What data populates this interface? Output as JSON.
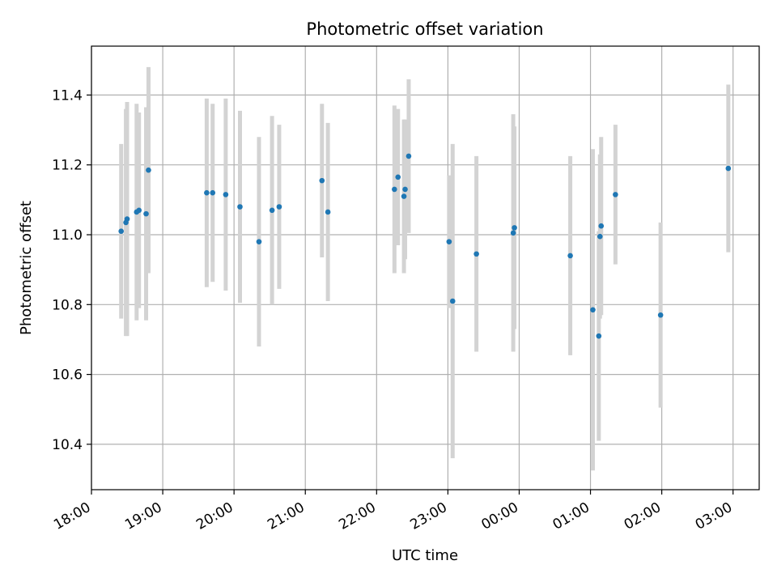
{
  "chart_data": {
    "type": "scatter",
    "title": "Photometric offset variation",
    "xlabel": "UTC time",
    "ylabel": "Photometric offset",
    "xlim": [
      "18:00",
      "03:22"
    ],
    "ylim": [
      10.27,
      11.54
    ],
    "x_ticks": [
      "18:00",
      "19:00",
      "20:00",
      "21:00",
      "22:00",
      "23:00",
      "00:00",
      "01:00",
      "02:00",
      "03:00"
    ],
    "y_ticks": [
      "10.4",
      "10.6",
      "10.8",
      "11.0",
      "11.2",
      "11.4"
    ],
    "grid": true,
    "colors": {
      "marker": "#1f77b4",
      "errorbar": "#d3d3d3",
      "grid": "#b0b0b0"
    },
    "points": [
      {
        "x": "18:25",
        "y": 11.01,
        "err": 0.25
      },
      {
        "x": "18:29",
        "y": 11.035,
        "err": 0.325
      },
      {
        "x": "18:30",
        "y": 11.045,
        "err": 0.335
      },
      {
        "x": "18:38",
        "y": 11.065,
        "err": 0.31
      },
      {
        "x": "18:40",
        "y": 11.07,
        "err": 0.28
      },
      {
        "x": "18:46",
        "y": 11.06,
        "err": 0.305
      },
      {
        "x": "18:48",
        "y": 11.185,
        "err": 0.295
      },
      {
        "x": "19:37",
        "y": 11.12,
        "err": 0.27
      },
      {
        "x": "19:42",
        "y": 11.12,
        "err": 0.255
      },
      {
        "x": "19:53",
        "y": 11.115,
        "err": 0.275
      },
      {
        "x": "20:05",
        "y": 11.08,
        "err": 0.275
      },
      {
        "x": "20:21",
        "y": 10.98,
        "err": 0.3
      },
      {
        "x": "20:32",
        "y": 11.07,
        "err": 0.27
      },
      {
        "x": "20:38",
        "y": 11.08,
        "err": 0.235
      },
      {
        "x": "21:14",
        "y": 11.155,
        "err": 0.22
      },
      {
        "x": "21:19",
        "y": 11.065,
        "err": 0.255
      },
      {
        "x": "22:15",
        "y": 11.13,
        "err": 0.24
      },
      {
        "x": "22:18",
        "y": 11.165,
        "err": 0.195
      },
      {
        "x": "22:23",
        "y": 11.11,
        "err": 0.22
      },
      {
        "x": "22:24",
        "y": 11.13,
        "err": 0.2
      },
      {
        "x": "22:27",
        "y": 11.225,
        "err": 0.22
      },
      {
        "x": "23:01",
        "y": 10.98,
        "err": 0.19
      },
      {
        "x": "23:04",
        "y": 10.81,
        "err": 0.45
      },
      {
        "x": "23:24",
        "y": 10.945,
        "err": 0.28
      },
      {
        "x": "23:55",
        "y": 11.005,
        "err": 0.34
      },
      {
        "x": "23:56",
        "y": 11.02,
        "err": 0.29
      },
      {
        "x": "00:43",
        "y": 10.94,
        "err": 0.285
      },
      {
        "x": "01:02",
        "y": 10.785,
        "err": 0.46
      },
      {
        "x": "01:07",
        "y": 10.71,
        "err": 0.3
      },
      {
        "x": "01:08",
        "y": 10.995,
        "err": 0.235
      },
      {
        "x": "01:09",
        "y": 11.025,
        "err": 0.255
      },
      {
        "x": "01:21",
        "y": 11.115,
        "err": 0.2
      },
      {
        "x": "01:59",
        "y": 10.77,
        "err": 0.265
      },
      {
        "x": "02:56",
        "y": 11.19,
        "err": 0.24
      }
    ]
  }
}
